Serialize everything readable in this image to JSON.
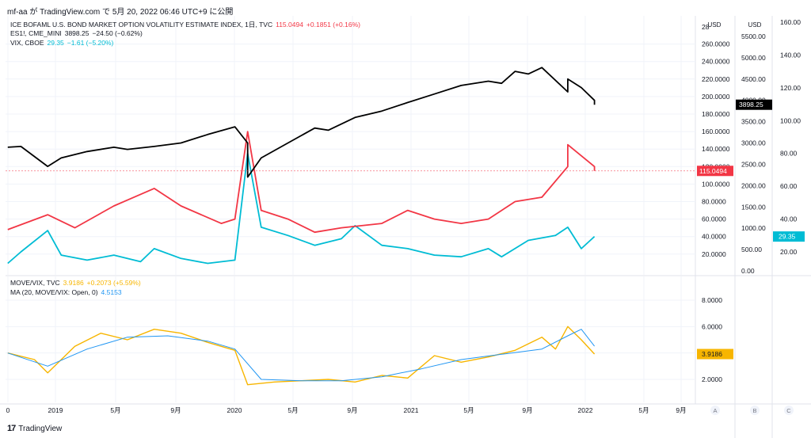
{
  "header": {
    "text": "mf-aa が TradingView.com で 5月 20, 2022 06:46 UTC+9 に公開"
  },
  "footer": {
    "brand": "TradingView",
    "logo_icon": "tradingview-logo-icon"
  },
  "top_pane": {
    "legend": [
      {
        "name": "ICE BOFAML U.S. BOND MARKET OPTION VOLATILITY ESTIMATE INDEX, 1日, TVC",
        "value": "115.0494",
        "change": "+0.1851 (+0.16%)",
        "color": "#f23645"
      },
      {
        "name": "ES1!, CME_MINI",
        "value": "3898.25",
        "change": "−24.50 (−0.62%)",
        "color": "#131722"
      },
      {
        "name": "VIX, CBOE",
        "value": "29.35",
        "change": "−1.61 (−5.20%)",
        "color": "#00bcd4"
      }
    ],
    "axis_a": {
      "unit": "USD",
      "ticks": [
        "28",
        "260.0000",
        "240.0000",
        "220.0000",
        "200.0000",
        "180.0000",
        "160.0000",
        "140.0000",
        "120.0000",
        "100.0000",
        "80.0000",
        "60.0000",
        "40.0000",
        "20.0000"
      ],
      "last_label": "115.0494"
    },
    "axis_b": {
      "unit": "USD",
      "ticks": [
        "5500.00",
        "5000.00",
        "4500.00",
        "4000.00",
        "3500.00",
        "3000.00",
        "2500.00",
        "2000.00",
        "1500.00",
        "1000.00",
        "500.00",
        "0.00"
      ],
      "last_label": "3898.25"
    },
    "axis_c": {
      "ticks": [
        "160.00",
        "140.00",
        "120.00",
        "100.00",
        "80.00",
        "60.00",
        "40.00",
        "20.00"
      ],
      "last_label": "29.35"
    }
  },
  "bottom_pane": {
    "legend": [
      {
        "name": "MOVE/VIX, TVC",
        "value": "3.9186",
        "change": "+0.2073 (+5.59%)",
        "color": "#f7b500"
      },
      {
        "name": "MA (20, MOVE/VIX: Open, 0)",
        "value": "4.5153",
        "change": "",
        "color": "#2196f3"
      }
    ],
    "axis": {
      "ticks": [
        "8.0000",
        "6.0000",
        "4.0000",
        "2.0000"
      ],
      "last_label": "3.9186"
    }
  },
  "time_axis": {
    "labels": [
      "0",
      "2019",
      "5月",
      "9月",
      "2020",
      "5月",
      "9月",
      "2021",
      "5月",
      "9月",
      "2022",
      "5月",
      "9月"
    ],
    "scale_buttons": [
      "A",
      "B",
      "C"
    ]
  },
  "chart_data": [
    {
      "type": "line",
      "pane": "top",
      "x_range": [
        "2018-09",
        "2022-05-19"
      ],
      "series": [
        {
          "name": "ES1!, CME_MINI",
          "axis": "B",
          "color": "#000000",
          "x": [
            "2018-09",
            "2018-10",
            "2018-12",
            "2019-01",
            "2019-03",
            "2019-05",
            "2019-06",
            "2019-08",
            "2019-10",
            "2019-12",
            "2020-02",
            "2020-03",
            "2020-03",
            "2020-04",
            "2020-06",
            "2020-08",
            "2020-09",
            "2020-11",
            "2021-01",
            "2021-03",
            "2021-05",
            "2021-07",
            "2021-09",
            "2021-10",
            "2021-11",
            "2021-12",
            "2022-01",
            "2022-03",
            "2022-03",
            "2022-04",
            "2022-05",
            "2022-05"
          ],
          "y": [
            2900,
            2920,
            2450,
            2650,
            2800,
            2900,
            2850,
            2920,
            3000,
            3200,
            3380,
            3000,
            2200,
            2650,
            3000,
            3350,
            3300,
            3600,
            3750,
            3950,
            4150,
            4350,
            4450,
            4400,
            4680,
            4620,
            4770,
            4200,
            4500,
            4300,
            4000,
            3898
          ]
        },
        {
          "name": "MOVE",
          "axis": "A",
          "color": "#f23645",
          "x": [
            "2018-09",
            "2018-12",
            "2019-02",
            "2019-05",
            "2019-08",
            "2019-10",
            "2020-01",
            "2020-02",
            "2020-03",
            "2020-04",
            "2020-06",
            "2020-08",
            "2020-10",
            "2021-01",
            "2021-03",
            "2021-05",
            "2021-07",
            "2021-09",
            "2021-11",
            "2022-01",
            "2022-03",
            "2022-03",
            "2022-05",
            "2022-05"
          ],
          "y": [
            48,
            65,
            50,
            75,
            95,
            75,
            55,
            60,
            160,
            70,
            60,
            45,
            50,
            55,
            70,
            60,
            55,
            60,
            80,
            85,
            120,
            145,
            120,
            115
          ]
        },
        {
          "name": "VIX, CBOE",
          "axis": "C",
          "color": "#00bcd4",
          "x": [
            "2018-09",
            "2018-10",
            "2018-12",
            "2019-01",
            "2019-03",
            "2019-05",
            "2019-07",
            "2019-08",
            "2019-10",
            "2019-12",
            "2020-02",
            "2020-03",
            "2020-04",
            "2020-06",
            "2020-08",
            "2020-10",
            "2020-11",
            "2021-01",
            "2021-03",
            "2021-05",
            "2021-07",
            "2021-09",
            "2021-10",
            "2021-12",
            "2022-02",
            "2022-03",
            "2022-04",
            "2022-05"
          ],
          "y": [
            13,
            20,
            33,
            18,
            15,
            18,
            14,
            22,
            16,
            13,
            15,
            80,
            35,
            30,
            24,
            28,
            36,
            24,
            22,
            18,
            17,
            22,
            17,
            27,
            30,
            35,
            22,
            29.35
          ]
        }
      ]
    },
    {
      "type": "line",
      "pane": "bottom",
      "ylim": [
        1.0,
        9.5
      ],
      "series": [
        {
          "name": "MOVE/VIX, TVC",
          "color": "#f7b500",
          "x": [
            "2018-09",
            "2018-11",
            "2018-12",
            "2019-02",
            "2019-04",
            "2019-06",
            "2019-08",
            "2019-10",
            "2019-12",
            "2020-01",
            "2020-02",
            "2020-03",
            "2020-05",
            "2020-07",
            "2020-09",
            "2020-11",
            "2021-01",
            "2021-03",
            "2021-05",
            "2021-07",
            "2021-09",
            "2021-11",
            "2022-01",
            "2022-02",
            "2022-03",
            "2022-04",
            "2022-05"
          ],
          "y": [
            4.0,
            3.5,
            2.5,
            4.5,
            5.5,
            5.0,
            5.8,
            5.5,
            4.8,
            4.5,
            4.2,
            1.6,
            1.8,
            1.9,
            2.0,
            1.8,
            2.3,
            2.1,
            3.8,
            3.3,
            3.7,
            4.2,
            5.2,
            4.3,
            6.0,
            5.0,
            3.9186
          ]
        },
        {
          "name": "MA (20, MOVE/VIX: Open, 0)",
          "color": "#2196f3",
          "x": [
            "2018-09",
            "2018-12",
            "2019-03",
            "2019-06",
            "2019-09",
            "2019-12",
            "2020-02",
            "2020-04",
            "2020-07",
            "2020-10",
            "2021-01",
            "2021-04",
            "2021-07",
            "2021-10",
            "2022-01",
            "2022-03",
            "2022-04",
            "2022-05"
          ],
          "y": [
            4.0,
            3.0,
            4.3,
            5.2,
            5.3,
            4.9,
            4.3,
            2.0,
            1.9,
            1.9,
            2.2,
            2.8,
            3.5,
            3.9,
            4.3,
            5.3,
            5.8,
            4.5153
          ]
        }
      ]
    }
  ]
}
